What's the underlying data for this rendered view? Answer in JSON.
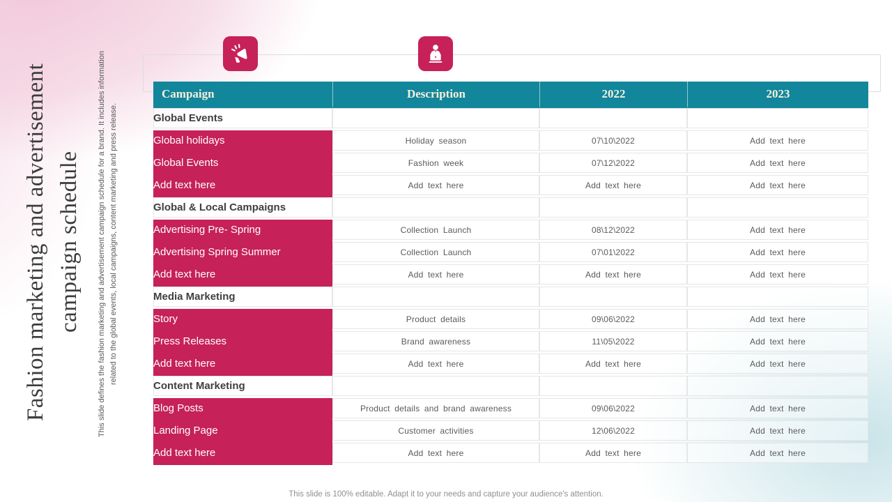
{
  "slide": {
    "title": "Fashion marketing and advertisement campaign schedule",
    "subtitle": "This slide defines the fashion marketing and advertisement campaign schedule for a brand. It includes information related to the global events, local campaigns, content marketing and press release.",
    "footer": "This slide is 100% editable. Adapt it to your needs and capture your audience's attention."
  },
  "icons": {
    "left": "megaphone-icon",
    "right": "presenter-laptop-icon"
  },
  "colors": {
    "accent_pink": "#C62158",
    "accent_teal": "#12869A",
    "header_text": "#F7F0DF",
    "background_pink": "#F0C4D7",
    "background_teal": "#BBDDE3"
  },
  "table": {
    "columns": [
      "Campaign",
      "Description",
      "2022",
      "2023"
    ],
    "rows": [
      {
        "type": "section",
        "label": "Global Events"
      },
      {
        "type": "data",
        "campaign": "Global holidays",
        "description": "Holiday season",
        "y2022": "07\\10\\2022",
        "y2023": "Add text here"
      },
      {
        "type": "data",
        "campaign": "Global Events",
        "description": "Fashion week",
        "y2022": "07\\12\\2022",
        "y2023": "Add text here"
      },
      {
        "type": "data",
        "campaign": "Add text here",
        "description": "Add text here",
        "y2022": "Add text here",
        "y2023": "Add text here"
      },
      {
        "type": "section",
        "label": "Global & Local Campaigns"
      },
      {
        "type": "data",
        "campaign": "Advertising Pre- Spring",
        "description": "Collection Launch",
        "y2022": "08\\12\\2022",
        "y2023": "Add text here"
      },
      {
        "type": "data",
        "campaign": "Advertising Spring Summer",
        "description": "Collection Launch",
        "y2022": "07\\01\\2022",
        "y2023": "Add text here"
      },
      {
        "type": "data",
        "campaign": "Add text here",
        "description": "Add text here",
        "y2022": "Add text here",
        "y2023": "Add text here"
      },
      {
        "type": "section",
        "label": "Media Marketing"
      },
      {
        "type": "data",
        "campaign": "Story",
        "description": "Product details",
        "y2022": "09\\06\\2022",
        "y2023": "Add text here"
      },
      {
        "type": "data",
        "campaign": "Press Releases",
        "description": "Brand awareness",
        "y2022": "11\\05\\2022",
        "y2023": "Add text here"
      },
      {
        "type": "data",
        "campaign": "Add text here",
        "description": "Add text here",
        "y2022": "Add text here",
        "y2023": "Add text here"
      },
      {
        "type": "section",
        "label": "Content Marketing"
      },
      {
        "type": "data",
        "campaign": "Blog Posts",
        "description": "Product details and brand awareness",
        "y2022": "09\\06\\2022",
        "y2023": "Add text here"
      },
      {
        "type": "data",
        "campaign": "Landing Page",
        "description": "Customer activities",
        "y2022": "12\\06\\2022",
        "y2023": "Add text here"
      },
      {
        "type": "data",
        "campaign": "Add text here",
        "description": "Add text here",
        "y2022": "Add text here",
        "y2023": "Add text here"
      }
    ]
  }
}
